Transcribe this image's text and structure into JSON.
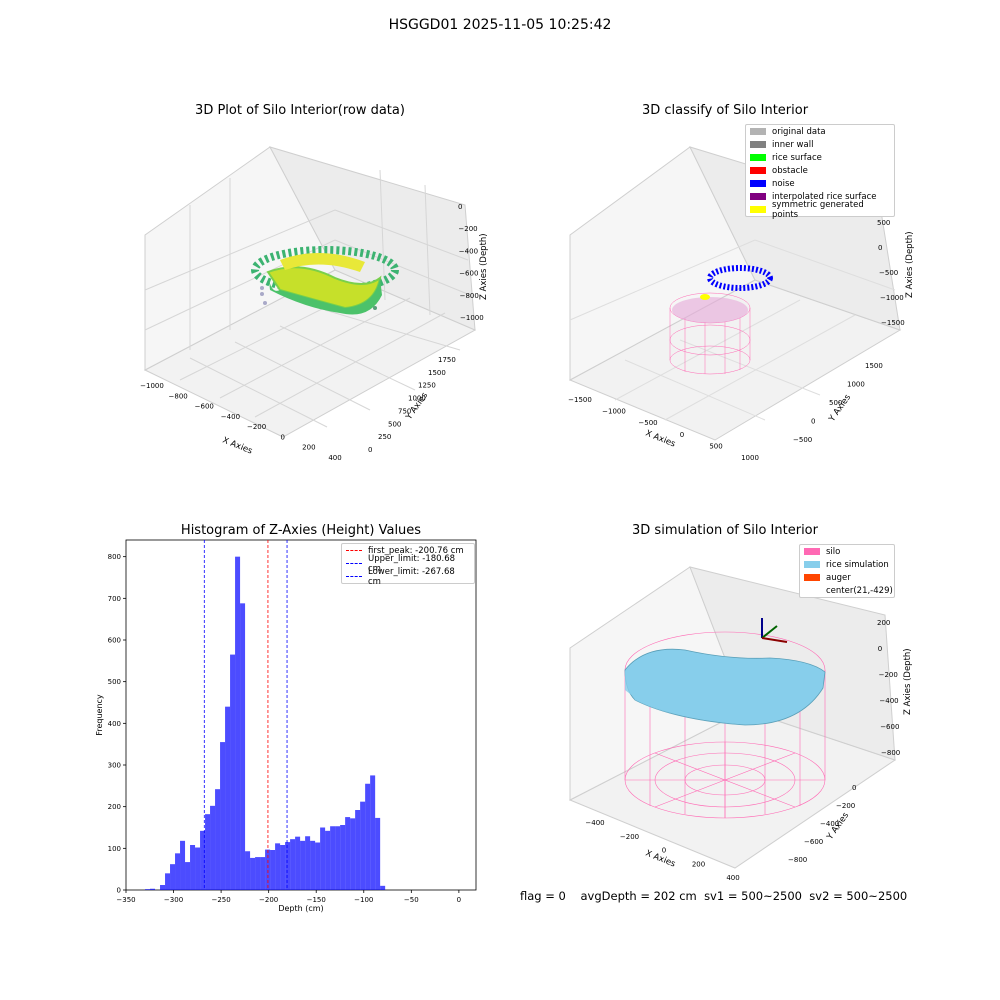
{
  "suptitle": "HSGGD01 2025-11-05 10:25:42",
  "status": {
    "flag": "flag = 0",
    "avg": "avgDepth = 202 cm",
    "sv1": "sv1 = 500~2500",
    "sv2": "sv2 = 500~2500"
  },
  "panels": {
    "raw": {
      "title": "3D Plot of Silo Interior(row data)",
      "xlabel": "X Axies",
      "ylabel": "Y Axies",
      "zlabel": "Z Axies (Depth)",
      "xticks": [
        "−1000",
        "−800",
        "−600",
        "−400",
        "−200",
        "0",
        "200",
        "400"
      ],
      "yticks": [
        "0",
        "250",
        "500",
        "750",
        "1000",
        "1250",
        "1500",
        "1750"
      ],
      "zticks": [
        "0",
        "−200",
        "−400",
        "−600",
        "−800",
        "−1000"
      ]
    },
    "classify": {
      "title": "3D classify of Silo Interior",
      "xlabel": "X Axies",
      "ylabel": "Y Axies",
      "zlabel": "Z Axies (Depth)",
      "xticks": [
        "−1500",
        "−1000",
        "−500",
        "0",
        "500",
        "1000"
      ],
      "yticks": [
        "−500",
        "0",
        "500",
        "1000",
        "1500"
      ],
      "zticks": [
        "500",
        "0",
        "−500",
        "−1000",
        "−1500"
      ],
      "legend": [
        {
          "label": "original data",
          "color": "#b3b3b3"
        },
        {
          "label": "inner wall",
          "color": "#808080"
        },
        {
          "label": "rice surface",
          "color": "#00ff00"
        },
        {
          "label": "obstacle",
          "color": "#ff0000"
        },
        {
          "label": "noise",
          "color": "#0000ff"
        },
        {
          "label": "interpolated rice surface",
          "color": "#800080"
        },
        {
          "label": "symmetric generated points",
          "color": "#ffff00"
        }
      ]
    },
    "sim": {
      "title": "3D simulation of Silo Interior",
      "xlabel": "X Axies",
      "ylabel": "Y Axies",
      "zlabel": "Z Axies (Depth)",
      "xticks": [
        "−400",
        "−200",
        "0",
        "200",
        "400"
      ],
      "yticks": [
        "−800",
        "−600",
        "−400",
        "−200",
        "0"
      ],
      "zticks": [
        "200",
        "0",
        "−200",
        "−400",
        "−600",
        "−800"
      ],
      "legend": [
        {
          "label": "silo",
          "color": "#ff69b4"
        },
        {
          "label": "rice simulation",
          "color": "#87ceeb"
        },
        {
          "label": "auger",
          "color": "#ff4500"
        },
        {
          "label": "center(21,-429)",
          "color": ""
        }
      ]
    }
  },
  "chart_data": {
    "type": "bar",
    "title": "Histogram of Z-Axies (Height) Values",
    "xlabel": "Depth (cm)",
    "ylabel": "Frequency",
    "xlim": [
      -350,
      18
    ],
    "ylim": [
      0,
      840
    ],
    "xticks": [
      -350,
      -300,
      -250,
      -200,
      -150,
      -100,
      -50,
      0
    ],
    "yticks": [
      0,
      100,
      200,
      300,
      400,
      500,
      600,
      700,
      800
    ],
    "bin_start": -330,
    "bin_width": 5.26,
    "values": [
      2,
      3,
      0,
      12,
      40,
      62,
      88,
      118,
      67,
      108,
      102,
      142,
      182,
      202,
      242,
      355,
      440,
      565,
      800,
      688,
      93,
      77,
      79,
      79,
      97,
      96,
      112,
      108,
      115,
      122,
      128,
      118,
      129,
      118,
      114,
      150,
      142,
      153,
      153,
      156,
      175,
      172,
      192,
      212,
      255,
      275,
      173,
      10
    ],
    "color": "#0000ff",
    "vlines": [
      {
        "label": "first_peak: -200.76 cm",
        "x": -200.76,
        "color": "#ff0000"
      },
      {
        "label": "Upper_limit: -180.68 cm",
        "x": -180.68,
        "color": "#0000ff"
      },
      {
        "label": "Lower_limit: -267.68 cm",
        "x": -267.68,
        "color": "#0000ff"
      }
    ]
  }
}
